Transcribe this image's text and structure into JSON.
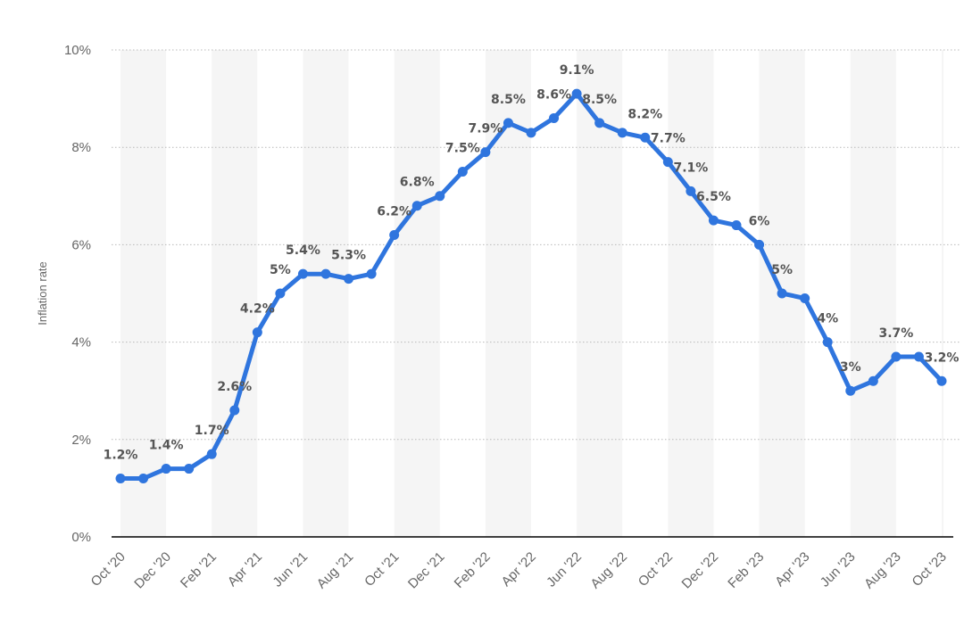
{
  "chart_data": {
    "type": "line",
    "xlabel": "",
    "ylabel": "Inflation rate",
    "ylim": [
      0,
      10
    ],
    "y_ticks": [
      0,
      2,
      4,
      6,
      8,
      10
    ],
    "y_tick_labels": [
      "0%",
      "2%",
      "4%",
      "6%",
      "8%",
      "10%"
    ],
    "x": [
      "Oct '20",
      "Nov '20",
      "Dec '20",
      "Jan '21",
      "Feb '21",
      "Mar '21",
      "Apr '21",
      "May '21",
      "Jun '21",
      "Jul '21",
      "Aug '21",
      "Sep '21",
      "Oct '21",
      "Nov '21",
      "Dec '21",
      "Jan '22",
      "Feb '22",
      "Mar '22",
      "Apr '22",
      "May '22",
      "Jun '22",
      "Jul '22",
      "Aug '22",
      "Sep '22",
      "Oct '22",
      "Nov '22",
      "Dec '22",
      "Jan '23",
      "Feb '23",
      "Mar '23",
      "Apr '23",
      "May '23",
      "Jun '23",
      "Jul '23",
      "Aug '23",
      "Sep '23",
      "Oct '23"
    ],
    "x_tick_labels": [
      "Oct '20",
      "Dec '20",
      "Feb '21",
      "Apr '21",
      "Jun '21",
      "Aug '21",
      "Oct '21",
      "Dec '21",
      "Feb '22",
      "Apr '22",
      "Jun '22",
      "Aug '22",
      "Oct '22",
      "Dec '22",
      "Feb '23",
      "Apr '23",
      "Jun '23",
      "Aug '23",
      "Oct '23"
    ],
    "series": [
      {
        "values": [
          1.2,
          1.2,
          1.4,
          1.4,
          1.7,
          2.6,
          4.2,
          5.0,
          5.4,
          5.4,
          5.3,
          5.4,
          6.2,
          6.8,
          7.0,
          7.5,
          7.9,
          8.5,
          8.3,
          8.6,
          9.1,
          8.5,
          8.3,
          8.2,
          7.7,
          7.1,
          6.5,
          6.4,
          6.0,
          5.0,
          4.9,
          4.0,
          3.0,
          3.2,
          3.7,
          3.7,
          3.2
        ]
      }
    ],
    "data_labels": [
      {
        "index": 0,
        "text": "1.2%"
      },
      {
        "index": 2,
        "text": "1.4%"
      },
      {
        "index": 4,
        "text": "1.7%"
      },
      {
        "index": 5,
        "text": "2.6%"
      },
      {
        "index": 6,
        "text": "4.2%"
      },
      {
        "index": 7,
        "text": "5%"
      },
      {
        "index": 8,
        "text": "5.4%"
      },
      {
        "index": 10,
        "text": "5.3%"
      },
      {
        "index": 12,
        "text": "6.2%"
      },
      {
        "index": 13,
        "text": "6.8%"
      },
      {
        "index": 15,
        "text": "7.5%"
      },
      {
        "index": 16,
        "text": "7.9%"
      },
      {
        "index": 17,
        "text": "8.5%"
      },
      {
        "index": 19,
        "text": "8.6%"
      },
      {
        "index": 20,
        "text": "9.1%"
      },
      {
        "index": 21,
        "text": "8.5%"
      },
      {
        "index": 23,
        "text": "8.2%"
      },
      {
        "index": 24,
        "text": "7.7%"
      },
      {
        "index": 25,
        "text": "7.1%"
      },
      {
        "index": 26,
        "text": "6.5%"
      },
      {
        "index": 28,
        "text": "6%"
      },
      {
        "index": 29,
        "text": "5%"
      },
      {
        "index": 31,
        "text": "4%"
      },
      {
        "index": 32,
        "text": "3%"
      },
      {
        "index": 34,
        "text": "3.7%"
      },
      {
        "index": 36,
        "text": "3.2%"
      }
    ],
    "grid": true,
    "legend": "none",
    "colors": {
      "line": "#2f75de",
      "band": "#f5f5f5",
      "grid": "#b9b9b9",
      "axis": "#000000",
      "label": "#555555",
      "tick": "#666666"
    }
  }
}
